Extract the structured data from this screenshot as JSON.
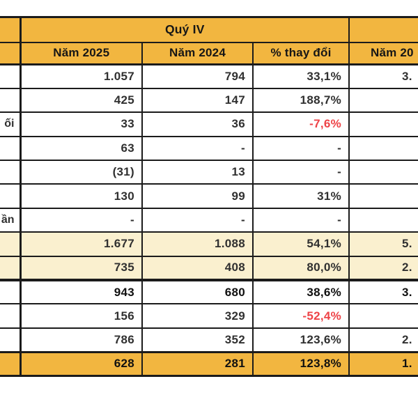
{
  "chart_data": {
    "type": "table",
    "header": {
      "quarter_group": "Quý IV",
      "year_a": "Năm 2025",
      "year_b": "Năm 2024",
      "change": "% thay đổi",
      "next_year_partial": "Năm 20"
    },
    "rows": [
      {
        "label": "",
        "a": "1.057",
        "b": "794",
        "pct": "33,1%",
        "next": "3.",
        "variant": "normal",
        "neg": false
      },
      {
        "label": "",
        "a": "425",
        "b": "147",
        "pct": "188,7%",
        "next": "",
        "variant": "normal",
        "neg": false
      },
      {
        "label": "ối",
        "a": "33",
        "b": "36",
        "pct": "-7,6%",
        "next": "",
        "variant": "normal",
        "neg": true
      },
      {
        "label": "",
        "a": "63",
        "b": "-",
        "pct": "-",
        "next": "",
        "variant": "normal",
        "neg": false
      },
      {
        "label": "",
        "a": "(31)",
        "b": "13",
        "pct": "-",
        "next": "",
        "variant": "normal",
        "neg": false
      },
      {
        "label": "",
        "a": "130",
        "b": "99",
        "pct": "31%",
        "next": "",
        "variant": "normal",
        "neg": false
      },
      {
        "label": "ần",
        "a": "-",
        "b": "-",
        "pct": "-",
        "next": "",
        "variant": "normal",
        "neg": false
      },
      {
        "label": "",
        "a": "1.677",
        "b": "1.088",
        "pct": "54,1%",
        "next": "5.",
        "variant": "subtotal",
        "neg": false
      },
      {
        "label": "",
        "a": "735",
        "b": "408",
        "pct": "80,0%",
        "next": "2.",
        "variant": "subtotal",
        "neg": false
      },
      {
        "label": "",
        "a": "943",
        "b": "680",
        "pct": "38,6%",
        "next": "3.",
        "variant": "bold",
        "neg": false
      },
      {
        "label": "",
        "a": "156",
        "b": "329",
        "pct": "-52,4%",
        "next": "",
        "variant": "normal",
        "neg": true
      },
      {
        "label": "",
        "a": "786",
        "b": "352",
        "pct": "123,6%",
        "next": "2.",
        "variant": "normal",
        "neg": false
      },
      {
        "label": "",
        "a": "628",
        "b": "281",
        "pct": "123,8%",
        "next": "1.",
        "variant": "total",
        "neg": false
      }
    ]
  },
  "colors": {
    "gold": "#F2B640",
    "cream": "#FAF0CF",
    "border": "#1b1b1b",
    "text": "#303030",
    "negative": "#EE4347"
  }
}
